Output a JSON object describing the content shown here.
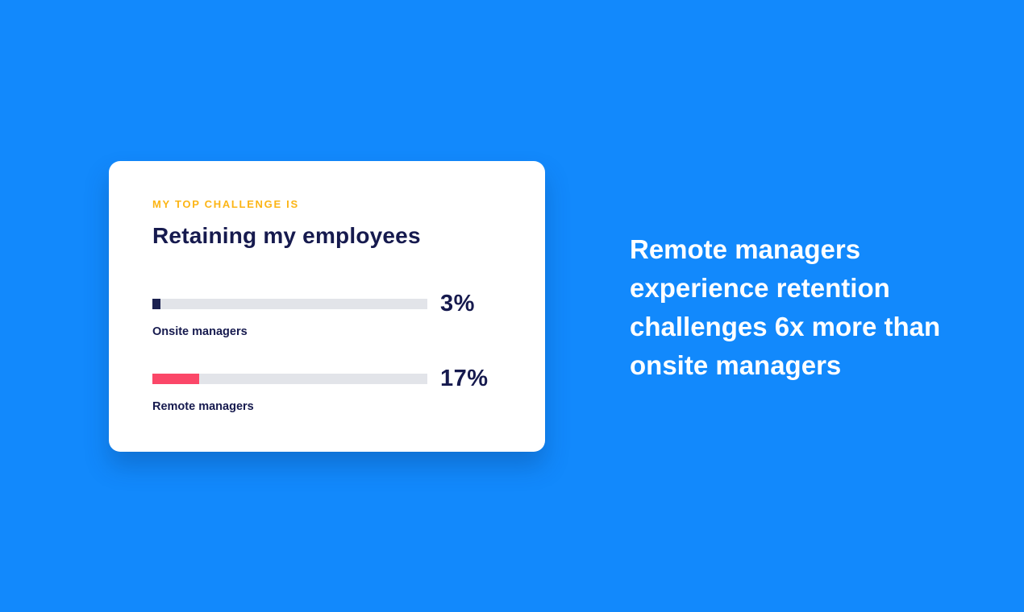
{
  "colors": {
    "background": "#1289FC",
    "card_background": "#FFFFFF",
    "eyebrow": "#FCB515",
    "heading": "#161A4E",
    "bar_track": "#E2E4E9",
    "onsite_bar": "#1B2150",
    "remote_bar": "#FB4768",
    "headline_text": "#FFFFFF"
  },
  "card": {
    "eyebrow": "MY TOP CHALLENGE IS",
    "title": "Retaining my employees",
    "bars": [
      {
        "label": "Onsite managers",
        "value_label": "3%",
        "percent": 3,
        "color": "#1B2150"
      },
      {
        "label": "Remote managers",
        "value_label": "17%",
        "percent": 17,
        "color": "#FB4768"
      }
    ]
  },
  "headline": "Remote managers experience retention challenges 6x more than onsite managers",
  "chart_data": {
    "type": "bar",
    "orientation": "horizontal",
    "subtitle": "MY TOP CHALLENGE IS",
    "title": "Retaining my employees",
    "categories": [
      "Onsite managers",
      "Remote managers"
    ],
    "values": [
      3,
      17
    ],
    "unit": "%",
    "xlim": [
      0,
      100
    ],
    "bar_colors": [
      "#1B2150",
      "#FB4768"
    ],
    "data_labels": [
      "3%",
      "17%"
    ],
    "legend": "off",
    "grid": "off",
    "annotation": "Remote managers experience retention challenges 6x more than onsite managers"
  }
}
